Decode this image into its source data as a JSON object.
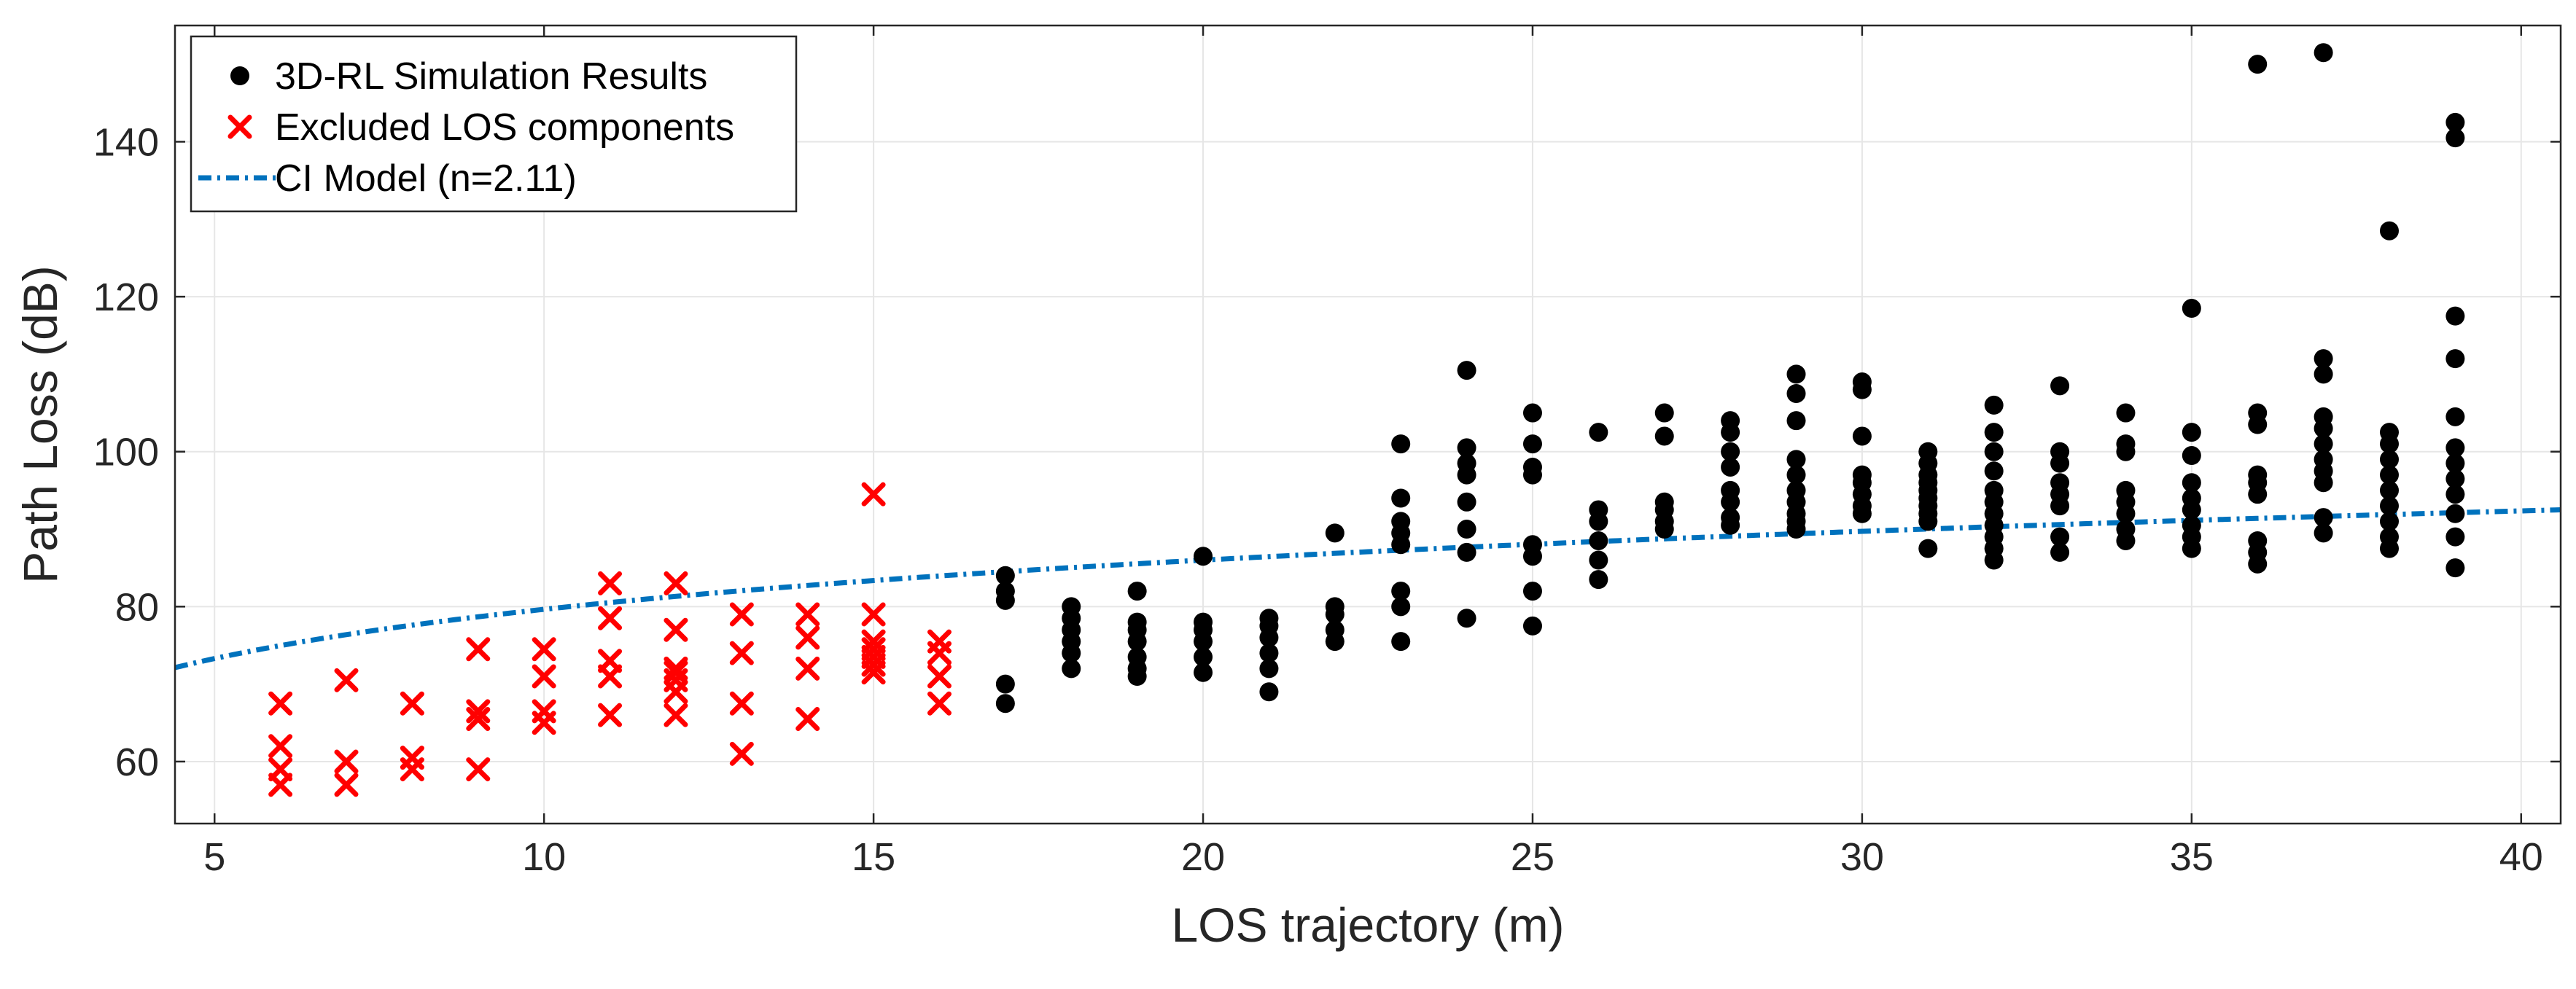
{
  "chart_data": {
    "type": "scatter",
    "title": "",
    "xlabel": "LOS trajectory (m)",
    "ylabel": "Path Loss (dB)",
    "xlim": [
      4.4,
      40.6
    ],
    "ylim": [
      52,
      155
    ],
    "xticks": [
      5,
      10,
      15,
      20,
      25,
      30,
      35,
      40
    ],
    "yticks": [
      60,
      80,
      100,
      120,
      140
    ],
    "grid": true,
    "legend_position": "top-left",
    "series": [
      {
        "name": "3D-RL Simulation Results",
        "marker": "filled-circle",
        "color": "#000000",
        "points": [
          [
            17,
            67.5
          ],
          [
            17,
            70
          ],
          [
            17,
            80.8
          ],
          [
            17,
            82
          ],
          [
            17,
            84
          ],
          [
            18,
            72
          ],
          [
            18,
            74
          ],
          [
            18,
            75.5
          ],
          [
            18,
            77
          ],
          [
            18,
            78.5
          ],
          [
            18,
            80
          ],
          [
            19,
            71
          ],
          [
            19,
            72
          ],
          [
            19,
            73.5
          ],
          [
            19,
            75.5
          ],
          [
            19,
            77
          ],
          [
            19,
            78
          ],
          [
            19,
            82
          ],
          [
            20,
            71.5
          ],
          [
            20,
            73.5
          ],
          [
            20,
            75.5
          ],
          [
            20,
            77
          ],
          [
            20,
            78
          ],
          [
            20,
            86.5
          ],
          [
            21,
            69
          ],
          [
            21,
            72
          ],
          [
            21,
            74
          ],
          [
            21,
            76
          ],
          [
            21,
            77.5
          ],
          [
            21,
            78.5
          ],
          [
            22,
            75.5
          ],
          [
            22,
            77
          ],
          [
            22,
            79
          ],
          [
            22,
            80
          ],
          [
            22,
            89.5
          ],
          [
            23,
            75.5
          ],
          [
            23,
            80
          ],
          [
            23,
            82
          ],
          [
            23,
            88
          ],
          [
            23,
            89.5
          ],
          [
            23,
            91
          ],
          [
            23,
            94
          ],
          [
            23,
            101
          ],
          [
            24,
            78.5
          ],
          [
            24,
            87
          ],
          [
            24,
            90
          ],
          [
            24,
            93.5
          ],
          [
            24,
            97
          ],
          [
            24,
            98.5
          ],
          [
            24,
            100.5
          ],
          [
            24,
            110.5
          ],
          [
            25,
            77.5
          ],
          [
            25,
            82
          ],
          [
            25,
            86.5
          ],
          [
            25,
            88
          ],
          [
            25,
            97
          ],
          [
            25,
            98
          ],
          [
            25,
            101
          ],
          [
            25,
            105
          ],
          [
            26,
            83.5
          ],
          [
            26,
            86
          ],
          [
            26,
            88.5
          ],
          [
            26,
            91
          ],
          [
            26,
            92.5
          ],
          [
            26,
            102.5
          ],
          [
            27,
            90
          ],
          [
            27,
            91
          ],
          [
            27,
            92.5
          ],
          [
            27,
            93.5
          ],
          [
            27,
            102
          ],
          [
            27,
            105
          ],
          [
            28,
            90.5
          ],
          [
            28,
            91.5
          ],
          [
            28,
            93.5
          ],
          [
            28,
            95
          ],
          [
            28,
            98
          ],
          [
            28,
            100
          ],
          [
            28,
            102.5
          ],
          [
            28,
            104
          ],
          [
            29,
            90
          ],
          [
            29,
            91
          ],
          [
            29,
            92
          ],
          [
            29,
            93.5
          ],
          [
            29,
            95
          ],
          [
            29,
            97
          ],
          [
            29,
            99
          ],
          [
            29,
            104
          ],
          [
            29,
            107.5
          ],
          [
            29,
            110
          ],
          [
            30,
            92
          ],
          [
            30,
            93
          ],
          [
            30,
            94.5
          ],
          [
            30,
            96
          ],
          [
            30,
            97
          ],
          [
            30,
            102
          ],
          [
            30,
            108
          ],
          [
            30,
            109
          ],
          [
            31,
            87.5
          ],
          [
            31,
            91
          ],
          [
            31,
            92
          ],
          [
            31,
            93
          ],
          [
            31,
            94
          ],
          [
            31,
            95
          ],
          [
            31,
            96
          ],
          [
            31,
            97
          ],
          [
            31,
            98.5
          ],
          [
            31,
            100
          ],
          [
            32,
            86
          ],
          [
            32,
            87.5
          ],
          [
            32,
            89
          ],
          [
            32,
            90.5
          ],
          [
            32,
            92
          ],
          [
            32,
            93.5
          ],
          [
            32,
            95
          ],
          [
            32,
            97.5
          ],
          [
            32,
            100
          ],
          [
            32,
            102.5
          ],
          [
            32,
            106
          ],
          [
            33,
            87
          ],
          [
            33,
            89
          ],
          [
            33,
            93
          ],
          [
            33,
            94.5
          ],
          [
            33,
            96
          ],
          [
            33,
            98.5
          ],
          [
            33,
            100
          ],
          [
            33,
            108.5
          ],
          [
            34,
            88.5
          ],
          [
            34,
            90
          ],
          [
            34,
            92
          ],
          [
            34,
            93.5
          ],
          [
            34,
            95
          ],
          [
            34,
            100
          ],
          [
            34,
            101
          ],
          [
            34,
            105
          ],
          [
            35,
            87.5
          ],
          [
            35,
            89
          ],
          [
            35,
            90.5
          ],
          [
            35,
            92.5
          ],
          [
            35,
            94
          ],
          [
            35,
            96
          ],
          [
            35,
            99.5
          ],
          [
            35,
            102.5
          ],
          [
            35,
            118.5
          ],
          [
            36,
            85.5
          ],
          [
            36,
            87
          ],
          [
            36,
            88.5
          ],
          [
            36,
            94.5
          ],
          [
            36,
            96
          ],
          [
            36,
            97
          ],
          [
            36,
            103.5
          ],
          [
            36,
            105
          ],
          [
            36,
            150
          ],
          [
            37,
            89.5
          ],
          [
            37,
            91.5
          ],
          [
            37,
            96
          ],
          [
            37,
            97.5
          ],
          [
            37,
            99
          ],
          [
            37,
            101
          ],
          [
            37,
            103
          ],
          [
            37,
            104.5
          ],
          [
            37,
            110
          ],
          [
            37,
            112
          ],
          [
            37,
            151.5
          ],
          [
            38,
            87.5
          ],
          [
            38,
            89
          ],
          [
            38,
            91
          ],
          [
            38,
            93
          ],
          [
            38,
            95
          ],
          [
            38,
            97
          ],
          [
            38,
            99
          ],
          [
            38,
            101
          ],
          [
            38,
            102.5
          ],
          [
            38,
            128.5
          ],
          [
            39,
            85
          ],
          [
            39,
            89
          ],
          [
            39,
            92
          ],
          [
            39,
            94.5
          ],
          [
            39,
            96.5
          ],
          [
            39,
            98.5
          ],
          [
            39,
            100.5
          ],
          [
            39,
            104.5
          ],
          [
            39,
            112
          ],
          [
            39,
            117.5
          ],
          [
            39,
            140.5
          ],
          [
            39,
            142.5
          ]
        ]
      },
      {
        "name": "Excluded LOS components",
        "marker": "x",
        "color": "#ff0000",
        "points": [
          [
            6,
            57
          ],
          [
            6,
            59
          ],
          [
            6,
            62
          ],
          [
            6,
            67.5
          ],
          [
            7,
            57
          ],
          [
            7,
            60
          ],
          [
            7,
            70.5
          ],
          [
            8,
            59
          ],
          [
            8,
            60.5
          ],
          [
            8,
            67.5
          ],
          [
            9,
            59
          ],
          [
            9,
            65.5
          ],
          [
            9,
            66.5
          ],
          [
            9,
            74.5
          ],
          [
            10,
            65
          ],
          [
            10,
            66.5
          ],
          [
            10,
            71
          ],
          [
            10,
            74.5
          ],
          [
            11,
            66
          ],
          [
            11,
            71
          ],
          [
            11,
            73
          ],
          [
            11,
            78.5
          ],
          [
            11,
            83
          ],
          [
            12,
            66
          ],
          [
            12,
            69
          ],
          [
            12,
            70.5
          ],
          [
            12,
            71.5
          ],
          [
            12,
            72
          ],
          [
            12,
            77
          ],
          [
            12,
            83
          ],
          [
            13,
            61
          ],
          [
            13,
            67.5
          ],
          [
            13,
            74
          ],
          [
            13,
            79
          ],
          [
            14,
            65.5
          ],
          [
            14,
            72
          ],
          [
            14,
            76
          ],
          [
            14,
            79
          ],
          [
            15,
            71.5
          ],
          [
            15,
            72.5
          ],
          [
            15,
            73.5
          ],
          [
            15,
            74.5
          ],
          [
            15,
            75.5
          ],
          [
            15,
            79
          ],
          [
            15,
            94.5
          ],
          [
            16,
            67.5
          ],
          [
            16,
            71
          ],
          [
            16,
            74
          ],
          [
            16,
            75.5
          ]
        ]
      },
      {
        "name": "CI Model (n=2.11)",
        "marker": "dash-dot-line",
        "color": "#0072bd",
        "model": {
          "PL_at_1m": 58.55,
          "n": 2.11,
          "formula": "PL = PL_at_1m + 10*n*log10(d)"
        }
      }
    ]
  }
}
